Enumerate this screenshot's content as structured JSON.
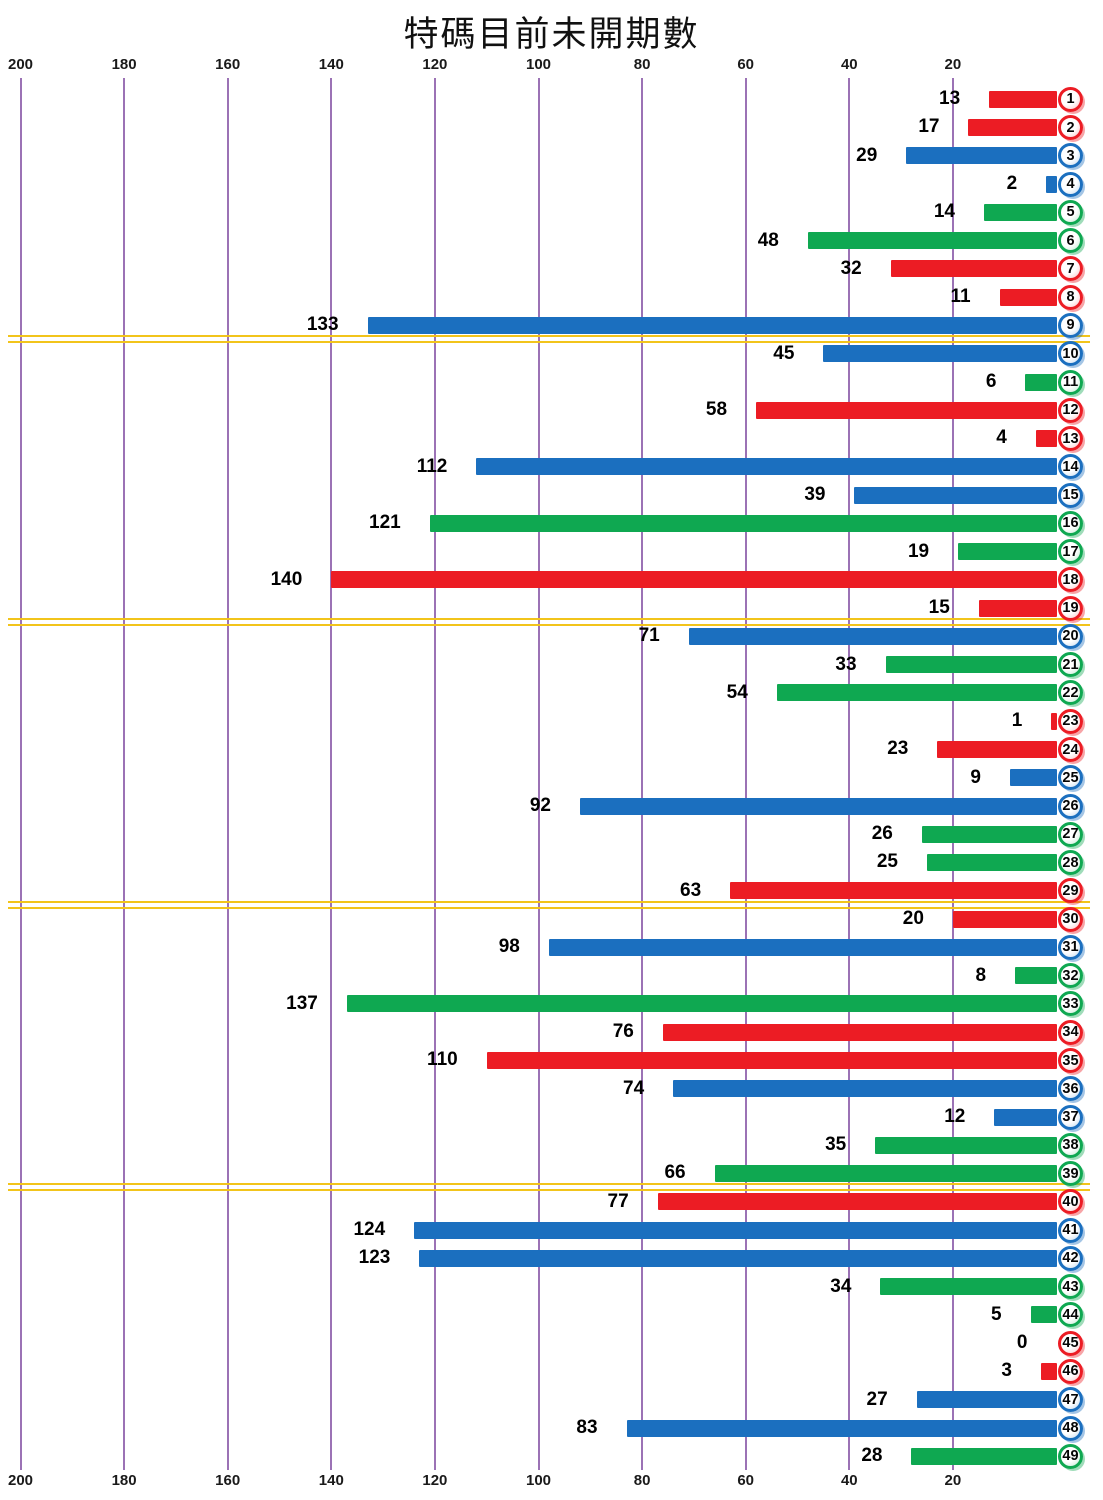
{
  "title": "特碼目前未開期數",
  "chart_data": {
    "type": "bar",
    "orientation": "horizontal-right-anchored",
    "title": "特碼目前未開期數",
    "xlabel": "",
    "ylabel": "",
    "axis_ticks": [
      200,
      180,
      160,
      140,
      120,
      100,
      80,
      60,
      40,
      20
    ],
    "axis_tick_positions": "top-and-bottom",
    "xlim": [
      0,
      200
    ],
    "grid": true,
    "categories": [
      1,
      2,
      3,
      4,
      5,
      6,
      7,
      8,
      9,
      10,
      11,
      12,
      13,
      14,
      15,
      16,
      17,
      18,
      19,
      20,
      21,
      22,
      23,
      24,
      25,
      26,
      27,
      28,
      29,
      30,
      31,
      32,
      33,
      34,
      35,
      36,
      37,
      38,
      39,
      40,
      41,
      42,
      43,
      44,
      45,
      46,
      47,
      48,
      49
    ],
    "values": [
      13,
      17,
      29,
      2,
      14,
      48,
      32,
      11,
      133,
      45,
      6,
      58,
      4,
      112,
      39,
      121,
      19,
      140,
      15,
      71,
      33,
      54,
      1,
      23,
      9,
      92,
      26,
      25,
      63,
      20,
      98,
      8,
      137,
      76,
      110,
      74,
      12,
      35,
      66,
      77,
      124,
      123,
      34,
      5,
      0,
      3,
      27,
      83,
      28
    ],
    "colors": [
      "red",
      "red",
      "blue",
      "blue",
      "green",
      "green",
      "red",
      "red",
      "blue",
      "blue",
      "green",
      "red",
      "red",
      "blue",
      "blue",
      "green",
      "green",
      "red",
      "red",
      "blue",
      "green",
      "green",
      "red",
      "red",
      "blue",
      "blue",
      "green",
      "green",
      "red",
      "red",
      "blue",
      "green",
      "green",
      "red",
      "red",
      "blue",
      "blue",
      "green",
      "green",
      "red",
      "blue",
      "blue",
      "green",
      "green",
      "red",
      "red",
      "blue",
      "blue",
      "green"
    ],
    "separators_after_category": [
      9,
      19,
      29,
      39
    ],
    "color_hex": {
      "red": "#EC1C24",
      "blue": "#1B6FBF",
      "green": "#0FA851"
    },
    "gridline_color": "#9B72B5",
    "separator_color": "#F2C41B",
    "value_label_color": "#000000",
    "badge_text_color": "#050505"
  }
}
